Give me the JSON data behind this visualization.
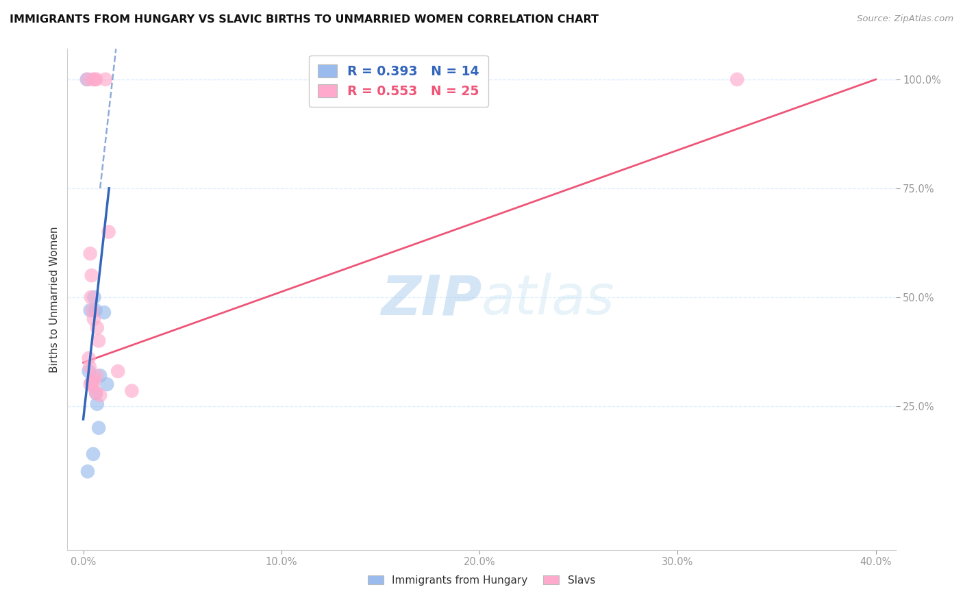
{
  "title": "IMMIGRANTS FROM HUNGARY VS SLAVIC BIRTHS TO UNMARRIED WOMEN CORRELATION CHART",
  "source": "Source: ZipAtlas.com",
  "ylabel": "Births to Unmarried Women",
  "legend_label1": "Immigrants from Hungary",
  "legend_label2": "Slavs",
  "R1": "0.393",
  "N1": "14",
  "R2": "0.553",
  "N2": "25",
  "blue_color": "#99BBEE",
  "pink_color": "#FFAACC",
  "blue_trend_color": "#3366BB",
  "pink_trend_color": "#EE5577",
  "background_color": "#FFFFFF",
  "grid_color": "#DDEEFF",
  "tick_color": "#5599DD",
  "x_ticks": [
    0.0,
    10.0,
    20.0,
    30.0,
    40.0
  ],
  "x_tick_labels": [
    "0.0%",
    "10.0%",
    "20.0%",
    "30.0%",
    "40.0%"
  ],
  "y_ticks": [
    25.0,
    50.0,
    75.0,
    100.0
  ],
  "y_tick_labels": [
    "25.0%",
    "50.0%",
    "75.0%",
    "100.0%"
  ],
  "x_min": -0.8,
  "x_max": 41.0,
  "y_min": -8.0,
  "y_max": 107.0,
  "blue_x": [
    0.18,
    0.55,
    0.62,
    0.28,
    0.35,
    1.05,
    1.2,
    0.7,
    0.85,
    0.64,
    0.78,
    0.5,
    0.42,
    0.22
  ],
  "blue_y": [
    100.0,
    50.0,
    47.0,
    33.0,
    47.0,
    46.5,
    30.0,
    25.5,
    32.0,
    28.0,
    20.0,
    14.0,
    30.5,
    10.0
  ],
  "pink_x": [
    0.6,
    0.65,
    0.22,
    0.5,
    1.12,
    1.28,
    0.35,
    0.42,
    0.39,
    0.46,
    0.53,
    0.7,
    0.78,
    0.28,
    0.32,
    1.75,
    0.67,
    0.56,
    0.35,
    0.42,
    0.5,
    2.45,
    0.65,
    0.85,
    33.0
  ],
  "pink_y": [
    100.0,
    100.0,
    100.0,
    100.0,
    100.0,
    65.0,
    60.0,
    55.0,
    50.0,
    47.0,
    45.0,
    43.0,
    40.0,
    36.0,
    34.0,
    33.0,
    32.0,
    31.0,
    30.0,
    30.5,
    29.5,
    28.5,
    28.0,
    27.5,
    100.0
  ],
  "blue_line_x0": 0.0,
  "blue_line_x1": 1.3,
  "blue_line_y0": 22.0,
  "blue_line_y1": 75.0,
  "blue_dash_x0": 0.85,
  "blue_dash_x1": 1.65,
  "blue_dash_y0": 75.0,
  "blue_dash_y1": 107.0,
  "pink_line_x0": 0.0,
  "pink_line_x1": 40.0,
  "pink_line_y0": 35.0,
  "pink_line_y1": 100.0
}
